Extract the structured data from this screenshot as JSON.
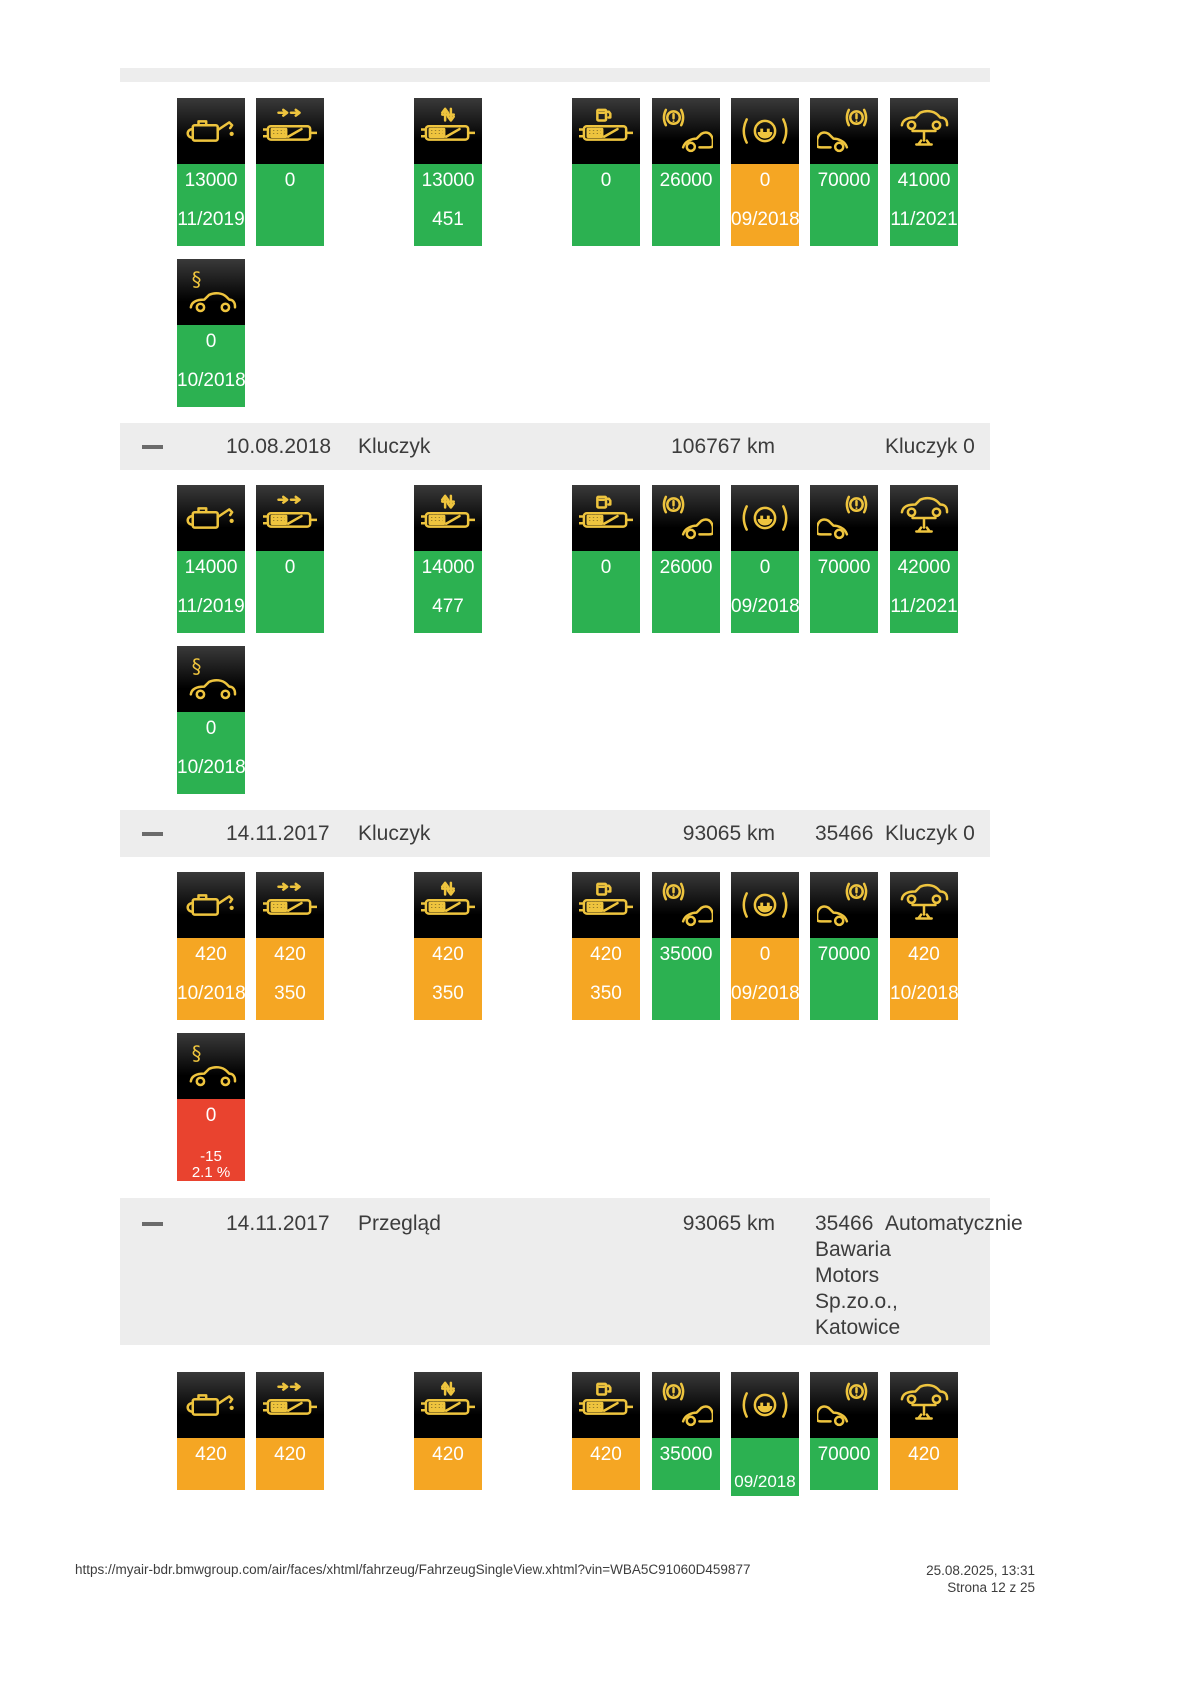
{
  "colors": {
    "green": "#2cb151",
    "orange": "#f5a623",
    "red": "#e9432f",
    "icon_yellow": "#eec43e",
    "header_bg": "#ededed",
    "tile_bg": "#000000"
  },
  "sections": [
    {
      "header": null,
      "tiles": [
        {
          "icon": "engine-oil",
          "status": "green",
          "line1": "13000",
          "line2": "11/2019"
        },
        {
          "icon": "diesel-particulate-filter",
          "status": "green",
          "line1": "0",
          "line2": ""
        },
        {
          "icon": "microfilter",
          "status": "green",
          "line1": "13000",
          "line2": "451"
        },
        {
          "icon": "fuel-filter",
          "status": "green",
          "line1": "0",
          "line2": ""
        },
        {
          "icon": "front-brakes",
          "status": "green",
          "line1": "26000",
          "line2": ""
        },
        {
          "icon": "brake-fluid",
          "status": "orange",
          "line1": "0",
          "line2": "09/2018"
        },
        {
          "icon": "rear-brakes",
          "status": "green",
          "line1": "70000",
          "line2": ""
        },
        {
          "icon": "vehicle-check",
          "status": "green",
          "line1": "41000",
          "line2": "11/2021"
        }
      ],
      "legal": {
        "icon": "statutory-inspection",
        "status": "green",
        "line1": "0",
        "line2": "10/2018"
      }
    },
    {
      "header": {
        "collapse": "–",
        "date": "10.08.2018",
        "type": "Kluczyk",
        "mileage": "106767 km",
        "number": "",
        "source": "Kluczyk 0",
        "dealer": []
      },
      "tiles": [
        {
          "icon": "engine-oil",
          "status": "green",
          "line1": "14000",
          "line2": "11/2019"
        },
        {
          "icon": "diesel-particulate-filter",
          "status": "green",
          "line1": "0",
          "line2": ""
        },
        {
          "icon": "microfilter",
          "status": "green",
          "line1": "14000",
          "line2": "477"
        },
        {
          "icon": "fuel-filter",
          "status": "green",
          "line1": "0",
          "line2": ""
        },
        {
          "icon": "front-brakes",
          "status": "green",
          "line1": "26000",
          "line2": ""
        },
        {
          "icon": "brake-fluid",
          "status": "green",
          "line1": "0",
          "line2": "09/2018"
        },
        {
          "icon": "rear-brakes",
          "status": "green",
          "line1": "70000",
          "line2": ""
        },
        {
          "icon": "vehicle-check",
          "status": "green",
          "line1": "42000",
          "line2": "11/2021"
        }
      ],
      "legal": {
        "icon": "statutory-inspection",
        "status": "green",
        "line1": "0",
        "line2": "10/2018"
      }
    },
    {
      "header": {
        "collapse": "–",
        "date": "14.11.2017",
        "type": "Kluczyk",
        "mileage": "93065 km",
        "number": "35466",
        "source": "Kluczyk 0",
        "dealer": []
      },
      "tiles": [
        {
          "icon": "engine-oil",
          "status": "orange",
          "line1": "420",
          "line2": "10/2018"
        },
        {
          "icon": "diesel-particulate-filter",
          "status": "orange",
          "line1": "420",
          "line2": "350"
        },
        {
          "icon": "microfilter",
          "status": "orange",
          "line1": "420",
          "line2": "350"
        },
        {
          "icon": "fuel-filter",
          "status": "orange",
          "line1": "420",
          "line2": "350"
        },
        {
          "icon": "front-brakes",
          "status": "green",
          "line1": "35000",
          "line2": ""
        },
        {
          "icon": "brake-fluid",
          "status": "orange",
          "line1": "0",
          "line2": "09/2018"
        },
        {
          "icon": "rear-brakes",
          "status": "green",
          "line1": "70000",
          "line2": ""
        },
        {
          "icon": "vehicle-check",
          "status": "orange",
          "line1": "420",
          "line2": "10/2018"
        }
      ],
      "legal": {
        "icon": "statutory-inspection",
        "status": "red",
        "line1": "0",
        "line2": "-15",
        "line3": "2.1 %"
      }
    },
    {
      "header": {
        "collapse": "–",
        "date": "14.11.2017",
        "type": "Przegląd",
        "mileage": "93065 km",
        "number": "35466",
        "source": "Automatycznie",
        "dealer": [
          "Bawaria",
          "Motors",
          "Sp.zo.o.,",
          "Katowice"
        ]
      },
      "tiles": [
        {
          "icon": "engine-oil",
          "status": "orange",
          "line1": "420",
          "line2": ""
        },
        {
          "icon": "diesel-particulate-filter",
          "status": "orange",
          "line1": "420",
          "line2": ""
        },
        {
          "icon": "microfilter",
          "status": "orange",
          "line1": "420",
          "line2": ""
        },
        {
          "icon": "fuel-filter",
          "status": "orange",
          "line1": "420",
          "line2": ""
        },
        {
          "icon": "front-brakes",
          "status": "green",
          "line1": "35000",
          "line2": ""
        },
        {
          "icon": "brake-fluid",
          "status": "green",
          "line1": "",
          "line2": "09/2018"
        },
        {
          "icon": "rear-brakes",
          "status": "green",
          "line1": "70000",
          "line2": ""
        },
        {
          "icon": "vehicle-check",
          "status": "orange",
          "line1": "420",
          "line2": ""
        }
      ],
      "legal": null
    }
  ],
  "footer": {
    "url": "https://myair-bdr.bmwgroup.com/air/faces/xhtml/fahrzeug/FahrzeugSingleView.xhtml?vin=WBA5C91060D459877",
    "datetime": "25.08.2025, 13:31",
    "page": "Strona 12 z 25"
  }
}
